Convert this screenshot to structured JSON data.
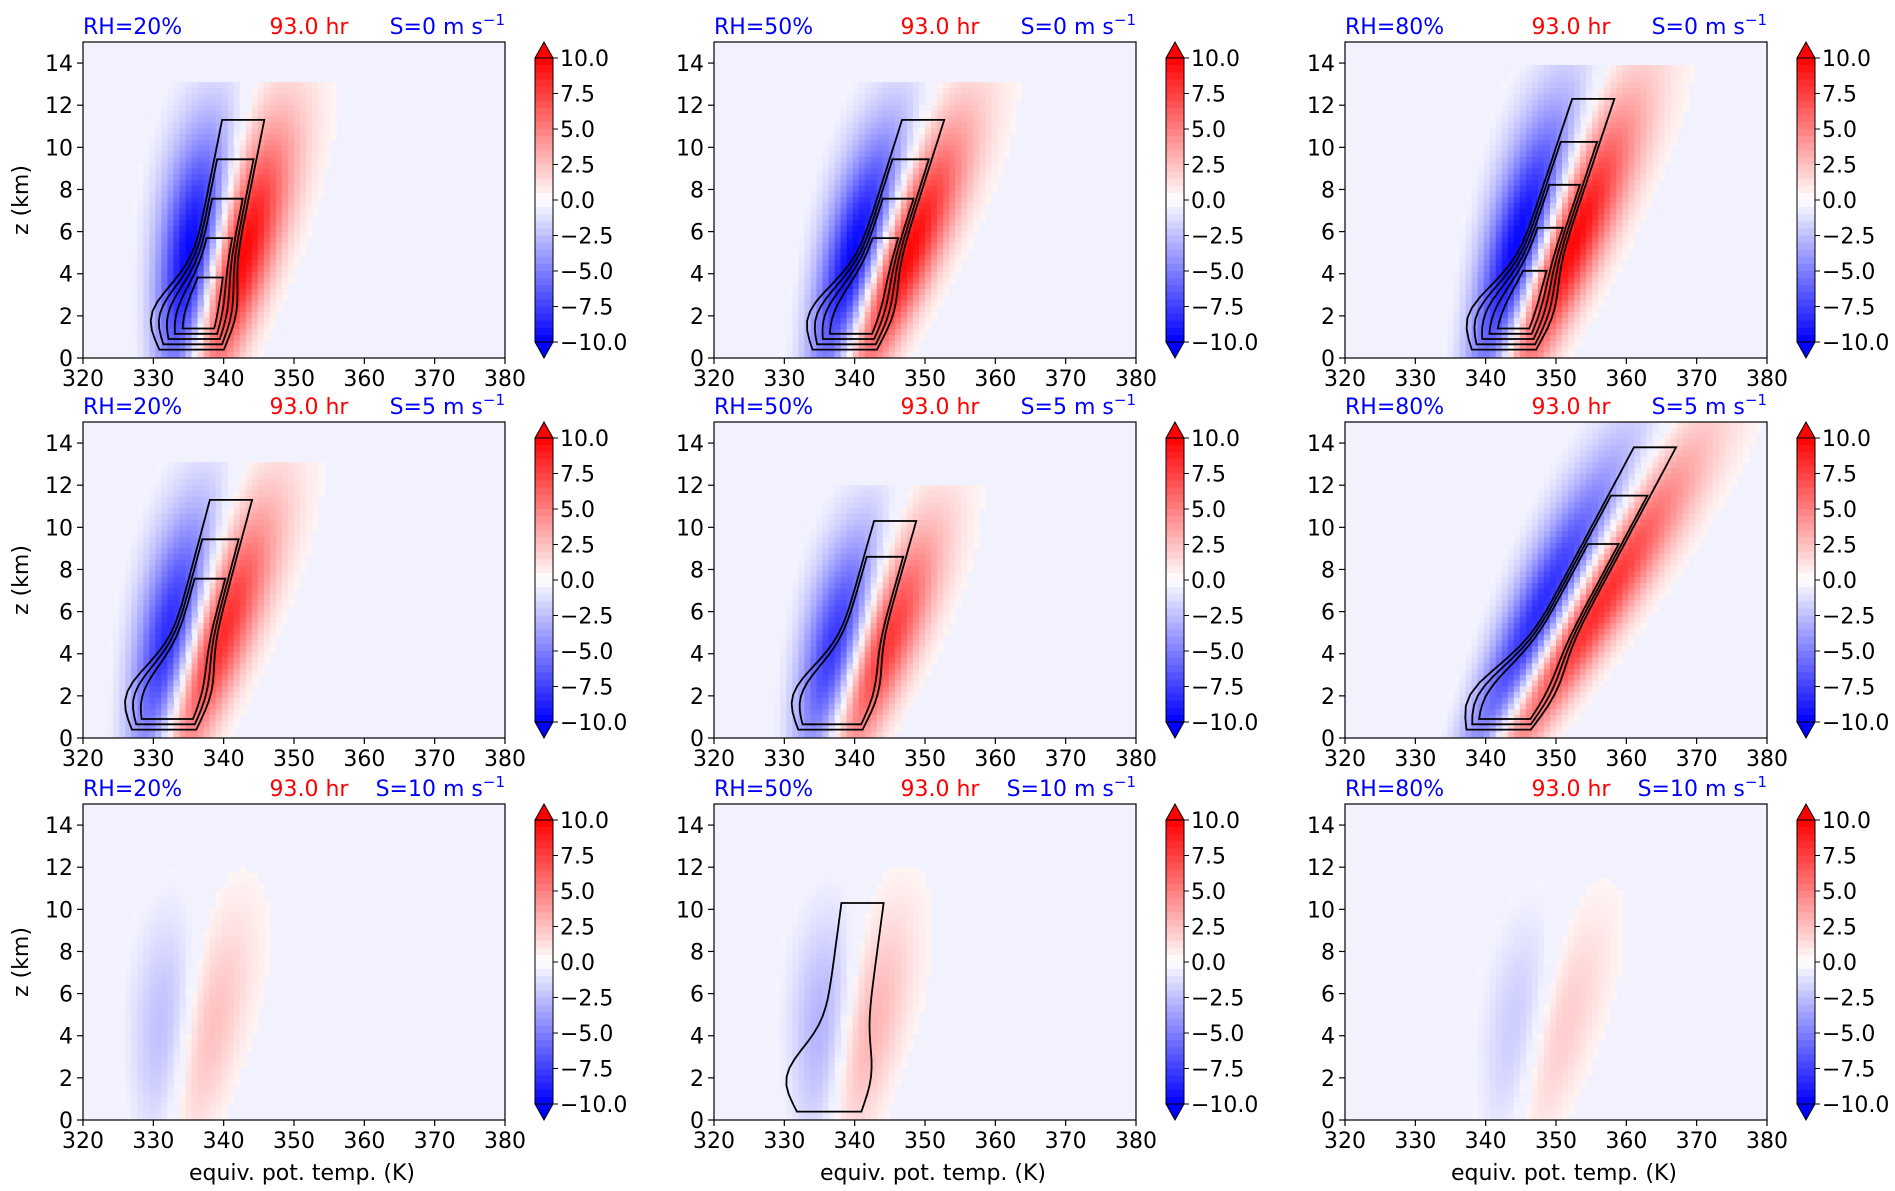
{
  "figure": {
    "row_titles": {
      "rh_color": "#0000ff",
      "time_color": "#ff0000",
      "shear_color": "#0000ff"
    }
  },
  "chart_data": {
    "type": "contour",
    "shared": {
      "xlabel": "equiv. pot. temp. (K)",
      "ylabel": "z (km)",
      "xlim": [
        320,
        380
      ],
      "ylim": [
        0,
        15
      ],
      "xticks": [
        "320",
        "330",
        "340",
        "350",
        "360",
        "370",
        "380"
      ],
      "yticks": [
        "0",
        "2",
        "4",
        "6",
        "8",
        "10",
        "12",
        "14"
      ],
      "colorbar_ticks": [
        "10.0",
        "7.5",
        "5.0",
        "2.5",
        "0.0",
        "−2.5",
        "−5.0",
        "−7.5",
        "−10.0"
      ],
      "colorbar_range": [
        -10,
        10
      ],
      "colormap": "bwr",
      "contour_color": "#000000",
      "time_label": "93.0 hr"
    },
    "panels": [
      {
        "rh_label": "RH=20%",
        "shear_label": "S=0 m s",
        "shear_unit_sup": "−1",
        "rh": 20,
        "shear": 0,
        "center_x": 336,
        "tilt": 0.6,
        "amp": 1.0,
        "top_z": 11,
        "n_contours": 5
      },
      {
        "rh_label": "RH=50%",
        "shear_label": "S=0 m s",
        "shear_unit_sup": "−1",
        "rh": 50,
        "shear": 0,
        "center_x": 339,
        "tilt": 0.95,
        "amp": 1.0,
        "top_z": 11,
        "n_contours": 4
      },
      {
        "rh_label": "RH=80%",
        "shear_label": "S=0 m s",
        "shear_unit_sup": "−1",
        "rh": 80,
        "shear": 0,
        "center_x": 343,
        "tilt": 1.0,
        "amp": 1.0,
        "top_z": 12,
        "n_contours": 5
      },
      {
        "rh_label": "RH=20%",
        "shear_label": "S=5 m s",
        "shear_unit_sup": "−1",
        "rh": 20,
        "shear": 5,
        "center_x": 332,
        "tilt": 0.8,
        "amp": 0.85,
        "top_z": 11,
        "n_contours": 3
      },
      {
        "rh_label": "RH=50%",
        "shear_label": "S=5 m s",
        "shear_unit_sup": "−1",
        "rh": 50,
        "shear": 5,
        "center_x": 337,
        "tilt": 0.85,
        "amp": 0.8,
        "top_z": 10,
        "n_contours": 2
      },
      {
        "rh_label": "RH=80%",
        "shear_label": "S=5 m s",
        "shear_unit_sup": "−1",
        "rh": 80,
        "shear": 5,
        "center_x": 342,
        "tilt": 1.6,
        "amp": 0.85,
        "top_z": 13.5,
        "n_contours": 3
      },
      {
        "rh_label": "RH=20%",
        "shear_label": "S=10 m s",
        "shear_unit_sup": "−1",
        "rh": 20,
        "shear": 10,
        "center_x": 333,
        "tilt": 0.4,
        "amp": 0.25,
        "top_z": 10,
        "n_contours": 0
      },
      {
        "rh_label": "RH=50%",
        "shear_label": "S=10 m s",
        "shear_unit_sup": "−1",
        "rh": 50,
        "shear": 10,
        "center_x": 337,
        "tilt": 0.4,
        "amp": 0.3,
        "top_z": 10,
        "n_contours": 1
      },
      {
        "rh_label": "RH=80%",
        "shear_label": "S=10 m s",
        "shear_unit_sup": "−1",
        "rh": 80,
        "shear": 10,
        "center_x": 345,
        "tilt": 0.6,
        "amp": 0.2,
        "top_z": 10,
        "n_contours": 0
      }
    ]
  }
}
